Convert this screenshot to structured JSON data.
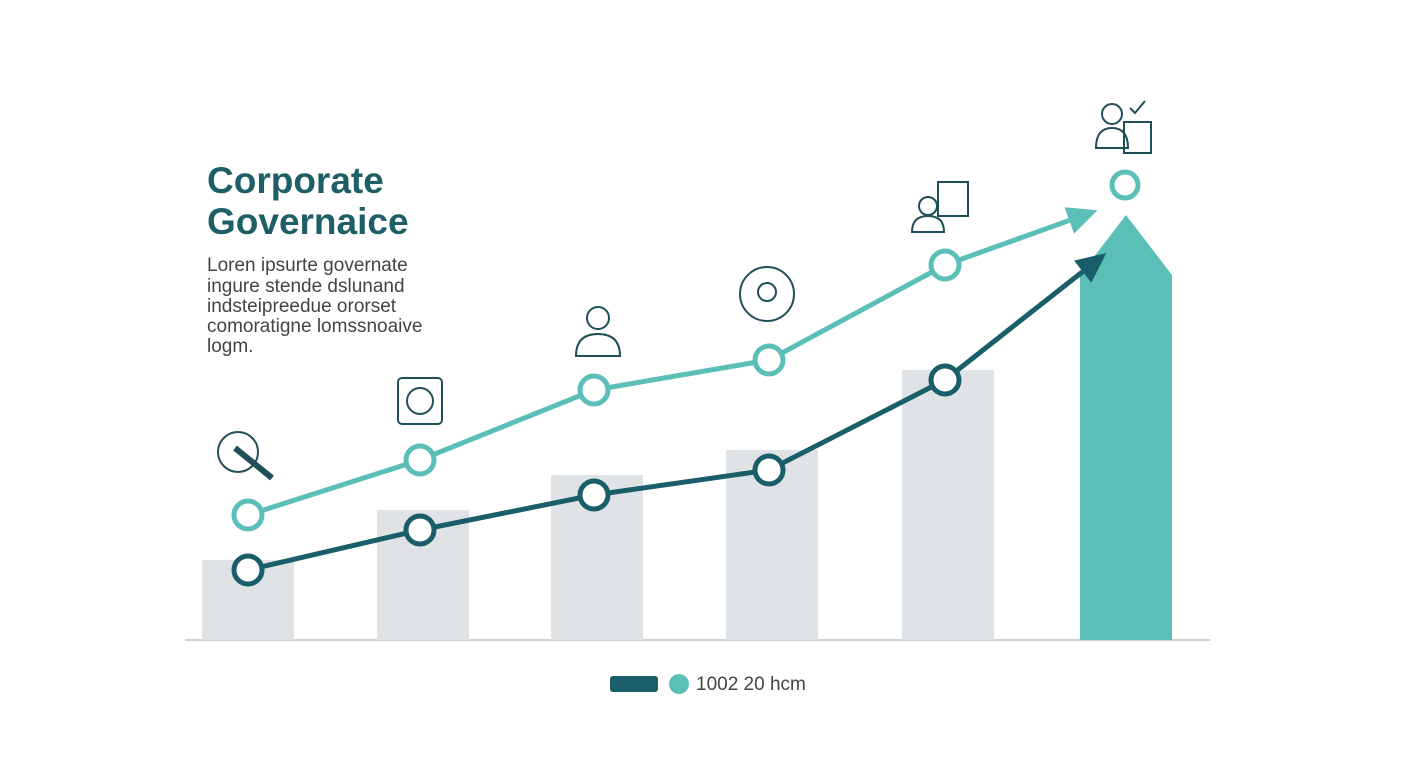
{
  "chart_data": {
    "type": "bar-line",
    "title_lines": [
      "Corporate",
      "Governaice"
    ],
    "description_lines": [
      "Loren ipsurte governate",
      "ingure stende dslunand",
      "indsteipreedue ororset",
      "comoratigne lomssnoaive",
      "logm."
    ],
    "categories": [
      null,
      null,
      null,
      null,
      null,
      null
    ],
    "values": [
      16,
      26,
      33,
      38,
      54,
      85
    ],
    "color": "#dfe3e6",
    "highlight_color": "#5bbfb8",
    "series": [
      {
        "color": "#5bbfb8",
        "values": [
          25,
          36,
          50,
          56,
          75,
          null
        ]
      },
      {
        "color": "#1a5e6a",
        "values": [
          14,
          22,
          29,
          34,
          52,
          null
        ]
      }
    ],
    "ylim": [
      0,
      100
    ],
    "legend_label": "1002 20 hcm"
  }
}
